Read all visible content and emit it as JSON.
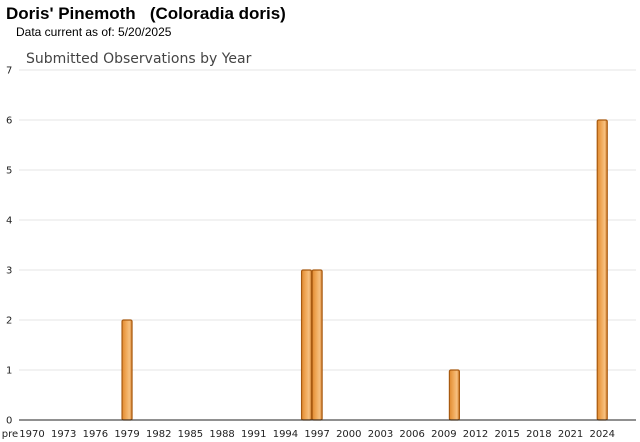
{
  "header": {
    "title": "Doris' Pinemoth   (Coloradia doris)",
    "date_line": "Data current as of: 5/20/2025"
  },
  "colors": {
    "bar_fill": "#F0A858",
    "bar_stroke": "#A85A10",
    "gridline": "#E4E4E4",
    "axis": "#222222"
  },
  "chart_data": {
    "type": "bar",
    "title": "Submitted Observations by Year",
    "xlabel": "",
    "ylabel": "",
    "ylim": [
      0,
      7
    ],
    "yticks": [
      "0",
      "1",
      "2",
      "3",
      "4",
      "5",
      "6",
      "7"
    ],
    "categories": [
      "pre",
      "1970",
      "1971",
      "1972",
      "1973",
      "1974",
      "1975",
      "1976",
      "1977",
      "1978",
      "1979",
      "1980",
      "1981",
      "1982",
      "1983",
      "1984",
      "1985",
      "1986",
      "1987",
      "1988",
      "1989",
      "1990",
      "1991",
      "1992",
      "1993",
      "1994",
      "1995",
      "1996",
      "1997",
      "1998",
      "1999",
      "2000",
      "2001",
      "2002",
      "2003",
      "2004",
      "2005",
      "2006",
      "2007",
      "2008",
      "2009",
      "2010",
      "2011",
      "2012",
      "2013",
      "2014",
      "2015",
      "2016",
      "2017",
      "2018",
      "2019",
      "2020",
      "2021",
      "2022",
      "2023",
      "2024",
      "2025"
    ],
    "values": [
      0,
      0,
      0,
      0,
      0,
      0,
      0,
      0,
      0,
      0,
      2,
      0,
      0,
      0,
      0,
      0,
      0,
      0,
      0,
      0,
      0,
      0,
      0,
      0,
      0,
      0,
      0,
      3,
      3,
      0,
      0,
      0,
      0,
      0,
      0,
      0,
      0,
      0,
      0,
      0,
      0,
      1,
      0,
      0,
      0,
      0,
      0,
      0,
      0,
      0,
      0,
      0,
      0,
      0,
      0,
      6,
      0
    ],
    "xtick_labels": [
      "pre",
      "1970",
      "1973",
      "1976",
      "1979",
      "1982",
      "1985",
      "1988",
      "1991",
      "1994",
      "1997",
      "2000",
      "2003",
      "2006",
      "2009",
      "2012",
      "2015",
      "2018",
      "2021",
      "2024"
    ],
    "grid": true,
    "legend": "none"
  }
}
